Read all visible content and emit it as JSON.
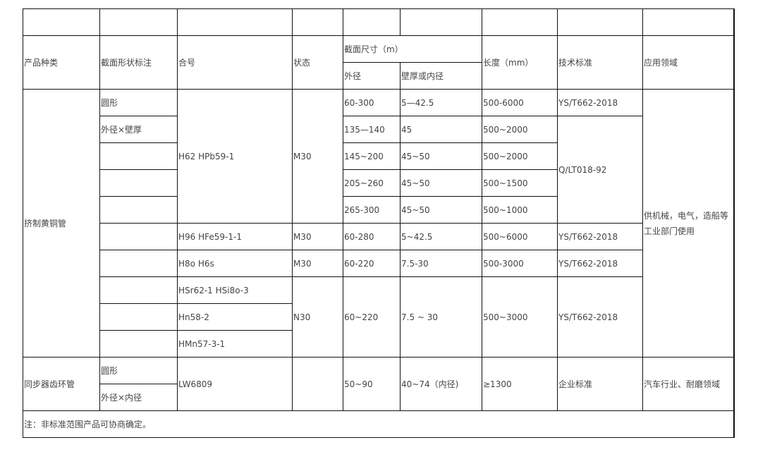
{
  "header": {
    "product_type": "产品种类",
    "section_shape": "截面形状标注",
    "alloy": "合号",
    "state": "状态",
    "section_size": "截面尺寸（m）",
    "outer_diameter": "外径",
    "wall_or_inner": "壁厚或内径",
    "length": "长度（mm）",
    "standard": "技术标准",
    "application": "应用领域"
  },
  "brass": {
    "product": "挤制黄铜管",
    "shape1": "圆形",
    "shape2": "外径×壁厚",
    "application": "供机械，电气，造船等工业部门使用",
    "group1": {
      "alloy": "H62 HPb59-1",
      "state": "M30",
      "rows": [
        {
          "od": "60-300",
          "wall": "5—42.5",
          "length": "500-6000",
          "standard": "YS/T662-2018"
        },
        {
          "od": "135—140",
          "wall": "45",
          "length": "500~2000"
        },
        {
          "od": "145~200",
          "wall": "45~50",
          "length": "500~2000"
        },
        {
          "od": "205~260",
          "wall": "45~50",
          "length": "500~1500"
        },
        {
          "od": "265-300",
          "wall": "45~50",
          "length": "500~1000"
        }
      ],
      "standard2": "Q/LT018-92"
    },
    "group2": {
      "alloy": "H96 HFe59-1-1",
      "state": "M30",
      "od": "60-280",
      "wall": "5~42.5",
      "length": "500~6000",
      "standard": "YS/T662-2018"
    },
    "group3": {
      "alloy": "H8o H6s",
      "state": "M30",
      "od": "60-220",
      "wall": "7.5-30",
      "length": "500-3000",
      "standard": "YS/T662-2018"
    },
    "group4": {
      "alloys": [
        "HSr62-1 HSi8o-3",
        "Hn58-2",
        "HMn57-3-1"
      ],
      "state": "N30",
      "od": "60~220",
      "wall": "7.5 ~ 30",
      "length": "500~3000",
      "standard": "YS/T662-2018"
    }
  },
  "sync": {
    "product": "同步器齿环管",
    "shape1": "圆形",
    "shape2": "外径×内径",
    "alloy": "LW6809",
    "state": "",
    "od": "50~90",
    "wall": "40~74（内径)",
    "length": "≥1300",
    "standard": "企业标准",
    "application": "汽车行业、耐磨领域"
  },
  "note": "注：非标准范围产品可协商确定。"
}
